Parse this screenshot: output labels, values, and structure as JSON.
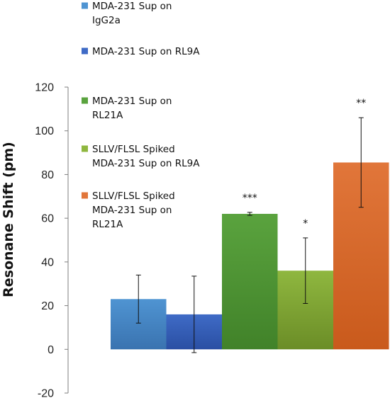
{
  "chart_data": {
    "type": "bar",
    "ylabel": "Resonane Shift (pm)",
    "ylim": [
      -20,
      120
    ],
    "yticks": [
      -20,
      0,
      20,
      40,
      60,
      80,
      100,
      120
    ],
    "grid": false,
    "legend_position": "top-left",
    "series": [
      {
        "name": "MDA-231 Sup on IgG2a",
        "value": 23,
        "error": 11,
        "annotation": "",
        "color": "#4f94d2",
        "color_dark": "#3a73b0",
        "legend_lines": [
          "MDA-231 Sup on",
          "IgG2a"
        ]
      },
      {
        "name": "MDA-231 Sup on RL9A",
        "value": 16,
        "error": 17.5,
        "annotation": "",
        "color": "#3f6bc6",
        "color_dark": "#2a4fa3",
        "legend_lines": [
          "MDA-231 Sup on RL9A"
        ]
      },
      {
        "name": "MDA-231 Sup on RL21A",
        "value": 62,
        "error": 0.7,
        "annotation": "***",
        "color": "#5aa33e",
        "color_dark": "#418229",
        "legend_lines": [
          "MDA-231 Sup on",
          "RL21A"
        ]
      },
      {
        "name": "SLLV/FLSL Spiked MDA-231 Sup on RL9A",
        "value": 36,
        "error": 15,
        "annotation": "*",
        "color": "#8fb73f",
        "color_dark": "#6b8d27",
        "legend_lines": [
          "SLLV/FLSL Spiked",
          "MDA-231 Sup on RL9A"
        ]
      },
      {
        "name": "SLLV/FLSL Spiked MDA-231 Sup on RL21A",
        "value": 85.5,
        "error": 20.5,
        "annotation": "**",
        "color": "#e1763a",
        "color_dark": "#c95a1c",
        "legend_lines": [
          "SLLV/FLSL Spiked",
          "MDA-231 Sup on",
          "RL21A"
        ]
      }
    ]
  }
}
